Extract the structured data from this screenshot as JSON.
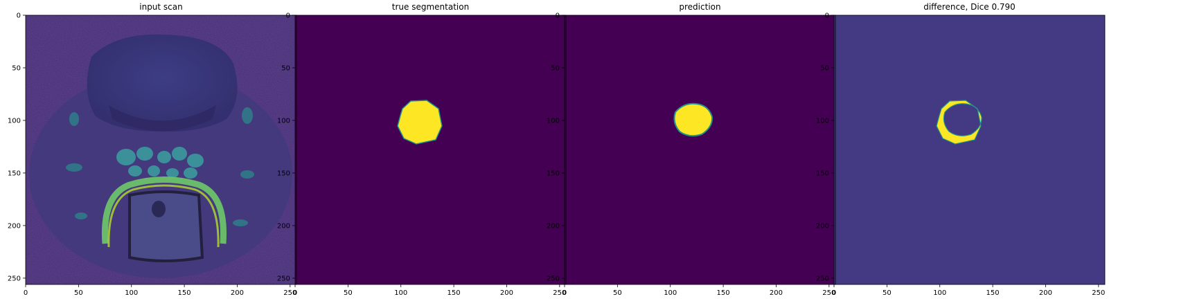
{
  "panels": [
    {
      "title": "input scan",
      "kind": "scan"
    },
    {
      "title": "true segmentation",
      "kind": "truth"
    },
    {
      "title": "prediction",
      "kind": "prediction"
    },
    {
      "title": "difference, Dice 0.790",
      "kind": "difference"
    }
  ],
  "axes": {
    "x_ticks": [
      "0",
      "50",
      "100",
      "150",
      "200",
      "250"
    ],
    "y_ticks": [
      "0",
      "50",
      "100",
      "150",
      "200",
      "250"
    ],
    "x_tick_values": [
      0,
      50,
      100,
      150,
      200,
      250
    ],
    "y_tick_values": [
      0,
      50,
      100,
      150,
      200,
      250
    ],
    "range": [
      0,
      256
    ]
  },
  "colors": {
    "background": "#440154",
    "foreground": "#fde725",
    "edge": "#21918c",
    "difference_background": "#443983",
    "scan_dark": "#3b2f7a",
    "scan_bright": "#5ec962"
  }
}
